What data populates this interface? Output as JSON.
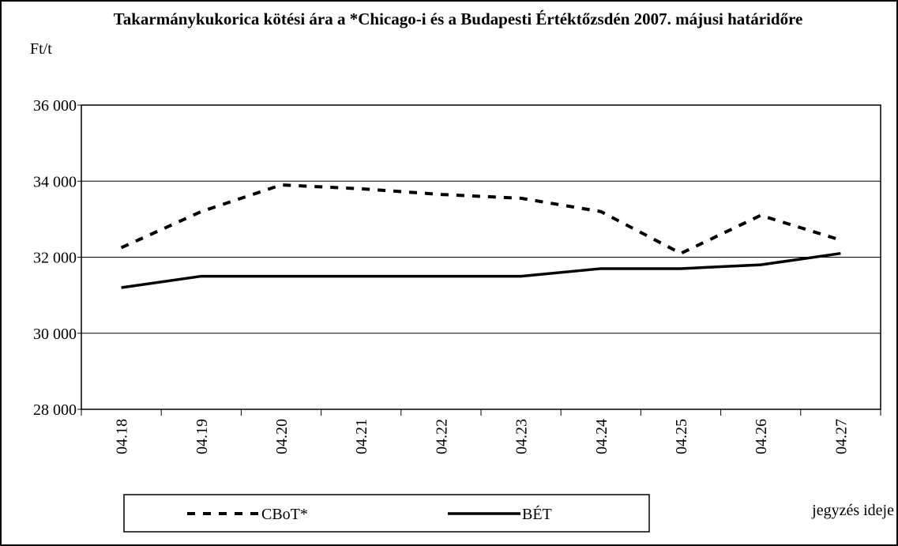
{
  "chart_data": {
    "type": "line",
    "title": "Takarmánykukorica kötési ára a *Chicago-i és a Budapesti Értéktőzsdén 2007. májusi határidőre",
    "y_label": "Ft/t",
    "x_label": "jegyzés ideje",
    "categories": [
      "04.18",
      "04.19",
      "04.20",
      "04.21",
      "04.22",
      "04.23",
      "04.24",
      "04.25",
      "04.26",
      "04.27"
    ],
    "series": [
      {
        "name": "CBoT*",
        "color": "#000000",
        "dashed": true,
        "values": [
          32250,
          33200,
          33900,
          33800,
          33650,
          33550,
          33200,
          32100,
          33100,
          32450
        ]
      },
      {
        "name": "BÉT",
        "color": "#000000",
        "dashed": false,
        "values": [
          31200,
          31500,
          31500,
          31500,
          31500,
          31500,
          31700,
          31700,
          31800,
          32100
        ]
      }
    ],
    "ylim": [
      28000,
      36000
    ],
    "yticks": [
      {
        "value": 28000,
        "label": "28 000"
      },
      {
        "value": 30000,
        "label": "30 000"
      },
      {
        "value": 32000,
        "label": "32 000"
      },
      {
        "value": 34000,
        "label": "34 000"
      },
      {
        "value": 36000,
        "label": "36 000"
      }
    ],
    "grid": true
  }
}
